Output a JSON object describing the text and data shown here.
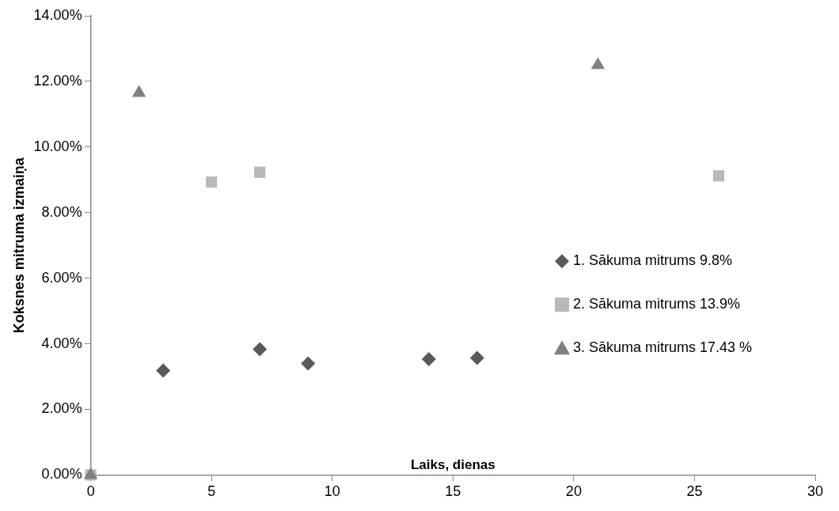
{
  "chart_data": {
    "type": "scatter",
    "xlabel": "Laiks, dienas",
    "ylabel": "Koksnes mitruma izmaiņa",
    "series": [
      {
        "name": "1. Sākuma mitrums 9.8%",
        "color": "#595959",
        "marker": "diamond",
        "x": [
          3,
          7,
          9,
          14,
          16
        ],
        "values": [
          3.18,
          3.83,
          3.4,
          3.53,
          3.57
        ]
      },
      {
        "name": "2. Sākuma mitrums 13.9%",
        "color": "#b8b8b8",
        "marker": "square",
        "x": [
          0,
          5,
          7,
          26
        ],
        "values": [
          0,
          8.93,
          9.23,
          9.12
        ]
      },
      {
        "name": "3. Sākuma mitrums 17.43 %",
        "color": "#808080",
        "marker": "triangle",
        "x": [
          0,
          2,
          21
        ],
        "values": [
          0,
          11.65,
          12.5
        ]
      }
    ],
    "xlim": [
      0,
      30
    ],
    "xticks": [
      0,
      5,
      10,
      15,
      20,
      25,
      30
    ],
    "ylim": [
      0,
      14
    ],
    "yticks": [
      {
        "value": 0,
        "label": "0.00%"
      },
      {
        "value": 2,
        "label": "2.00%"
      },
      {
        "value": 4,
        "label": "4.00%"
      },
      {
        "value": 6,
        "label": "6.00%"
      },
      {
        "value": 8,
        "label": "8.00%"
      },
      {
        "value": 10,
        "label": "10.00%"
      },
      {
        "value": 12,
        "label": "12.00%"
      },
      {
        "value": 14,
        "label": "14.00%"
      }
    ],
    "grid": false,
    "legend": "right"
  }
}
